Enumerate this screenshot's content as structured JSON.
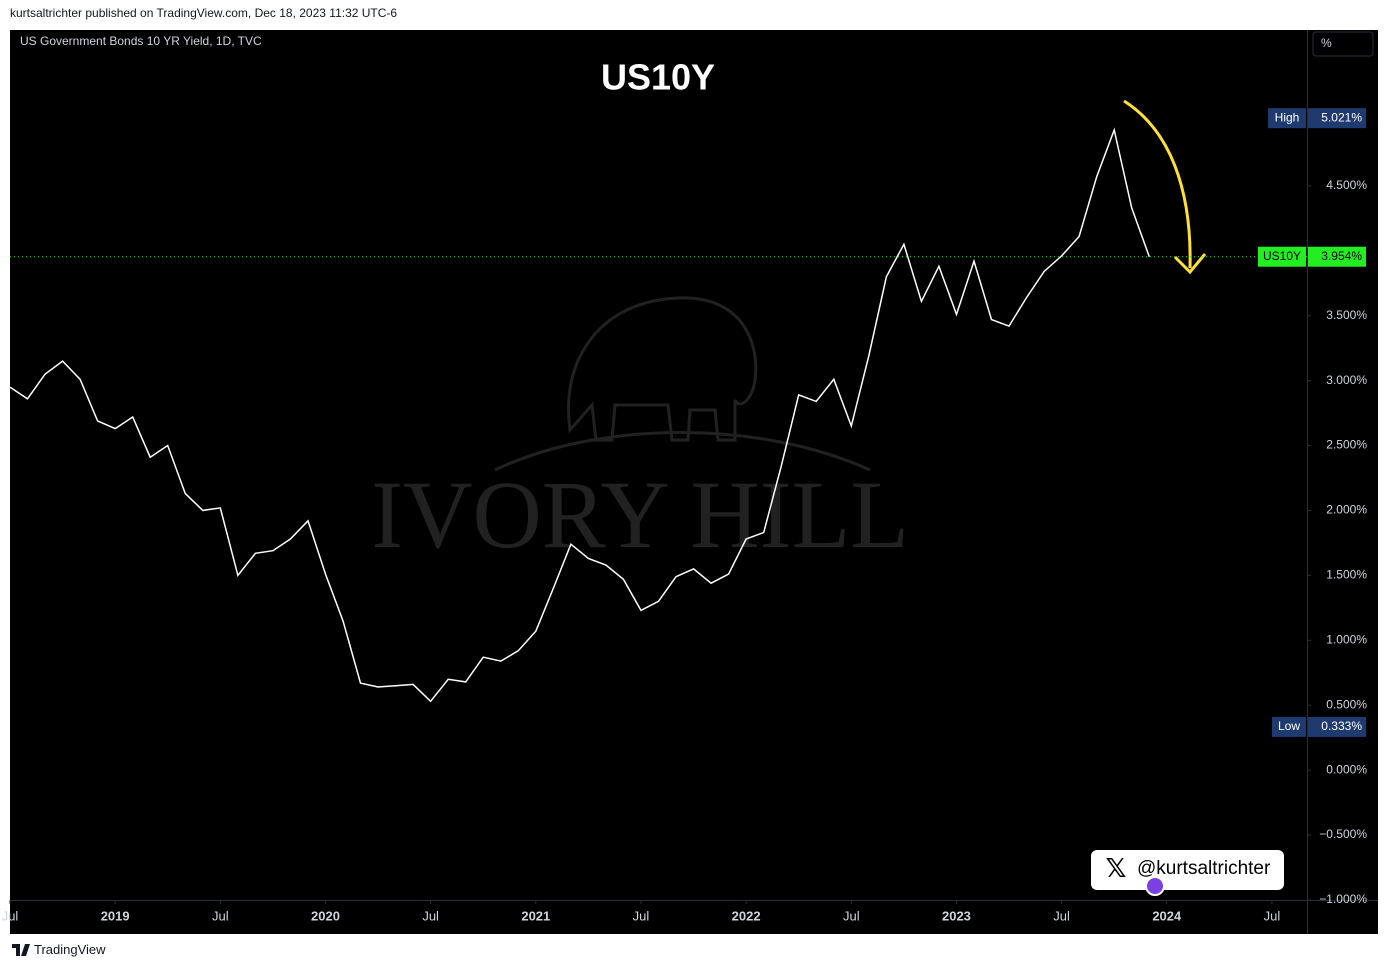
{
  "byline": "kurtsaltrichter published on TradingView.com, Dec 18, 2023 11:32 UTC-6",
  "footer": "TradingView",
  "watermark": "IVORY HILL",
  "handle": "@kurtsaltrichter",
  "chart_data": {
    "type": "line",
    "title": "US10Y",
    "subtitle": "US Government Bonds 10 YR Yield, 1D, TVC",
    "y_unit": "%",
    "x": [
      "2018-07",
      "2018-08",
      "2018-09",
      "2018-10",
      "2018-11",
      "2018-12",
      "2019-01",
      "2019-02",
      "2019-03",
      "2019-04",
      "2019-05",
      "2019-06",
      "2019-07",
      "2019-08",
      "2019-09",
      "2019-10",
      "2019-11",
      "2019-12",
      "2020-01",
      "2020-02",
      "2020-03",
      "2020-04",
      "2020-05",
      "2020-06",
      "2020-07",
      "2020-08",
      "2020-09",
      "2020-10",
      "2020-11",
      "2020-12",
      "2021-01",
      "2021-02",
      "2021-03",
      "2021-04",
      "2021-05",
      "2021-06",
      "2021-07",
      "2021-08",
      "2021-09",
      "2021-10",
      "2021-11",
      "2021-12",
      "2022-01",
      "2022-02",
      "2022-03",
      "2022-04",
      "2022-05",
      "2022-06",
      "2022-07",
      "2022-08",
      "2022-09",
      "2022-10",
      "2022-11",
      "2022-12",
      "2023-01",
      "2023-02",
      "2023-03",
      "2023-04",
      "2023-05",
      "2023-06",
      "2023-07",
      "2023-08",
      "2023-09",
      "2023-10",
      "2023-11",
      "2023-12"
    ],
    "series": [
      {
        "name": "US10Y",
        "color": "#ffffff",
        "values": [
          2.95,
          2.86,
          3.05,
          3.15,
          3.01,
          2.69,
          2.63,
          2.72,
          2.41,
          2.5,
          2.13,
          2.0,
          2.02,
          1.5,
          1.67,
          1.69,
          1.78,
          1.92,
          1.51,
          1.15,
          0.67,
          0.64,
          0.65,
          0.66,
          0.53,
          0.7,
          0.68,
          0.87,
          0.84,
          0.92,
          1.07,
          1.4,
          1.74,
          1.63,
          1.58,
          1.47,
          1.23,
          1.3,
          1.49,
          1.55,
          1.44,
          1.51,
          1.78,
          1.83,
          2.34,
          2.89,
          2.84,
          3.01,
          2.65,
          3.19,
          3.8,
          4.05,
          3.61,
          3.88,
          3.51,
          3.92,
          3.47,
          3.42,
          3.64,
          3.84,
          3.96,
          4.11,
          4.57,
          4.93,
          4.33,
          3.954
        ]
      }
    ],
    "last": {
      "value": 3.954,
      "label": "3.954%",
      "color": "#22ee22"
    },
    "high": {
      "name": "High",
      "value": 5.021,
      "label": "5.021%"
    },
    "low": {
      "name": "Low",
      "value": 0.333,
      "label": "0.333%"
    },
    "xlim": [
      "2018-07",
      "2024-09"
    ],
    "xticks": [
      {
        "value": "2018-07",
        "label": "Jul"
      },
      {
        "value": "2019-01",
        "label": "2019"
      },
      {
        "value": "2019-07",
        "label": "Jul"
      },
      {
        "value": "2020-01",
        "label": "2020"
      },
      {
        "value": "2020-07",
        "label": "Jul"
      },
      {
        "value": "2021-01",
        "label": "2021"
      },
      {
        "value": "2021-07",
        "label": "Jul"
      },
      {
        "value": "2022-01",
        "label": "2022"
      },
      {
        "value": "2022-07",
        "label": "Jul"
      },
      {
        "value": "2023-01",
        "label": "2023"
      },
      {
        "value": "2023-07",
        "label": "Jul"
      },
      {
        "value": "2024-01",
        "label": "2024"
      },
      {
        "value": "2024-07",
        "label": "Jul"
      }
    ],
    "ylim": [
      -1.0,
      5.7
    ],
    "yticks": [
      {
        "value": -1.0,
        "label": "−1.000%"
      },
      {
        "value": -0.5,
        "label": "−0.500%"
      },
      {
        "value": 0,
        "label": "0.000%"
      },
      {
        "value": 0.5,
        "label": "0.500%"
      },
      {
        "value": 1.0,
        "label": "1.000%"
      },
      {
        "value": 1.5,
        "label": "1.500%"
      },
      {
        "value": 2.0,
        "label": "2.000%"
      },
      {
        "value": 2.5,
        "label": "2.500%"
      },
      {
        "value": 3.0,
        "label": "3.000%"
      },
      {
        "value": 3.5,
        "label": "3.500%"
      },
      {
        "value": 4.5,
        "label": "4.500%"
      }
    ],
    "grid": false
  }
}
